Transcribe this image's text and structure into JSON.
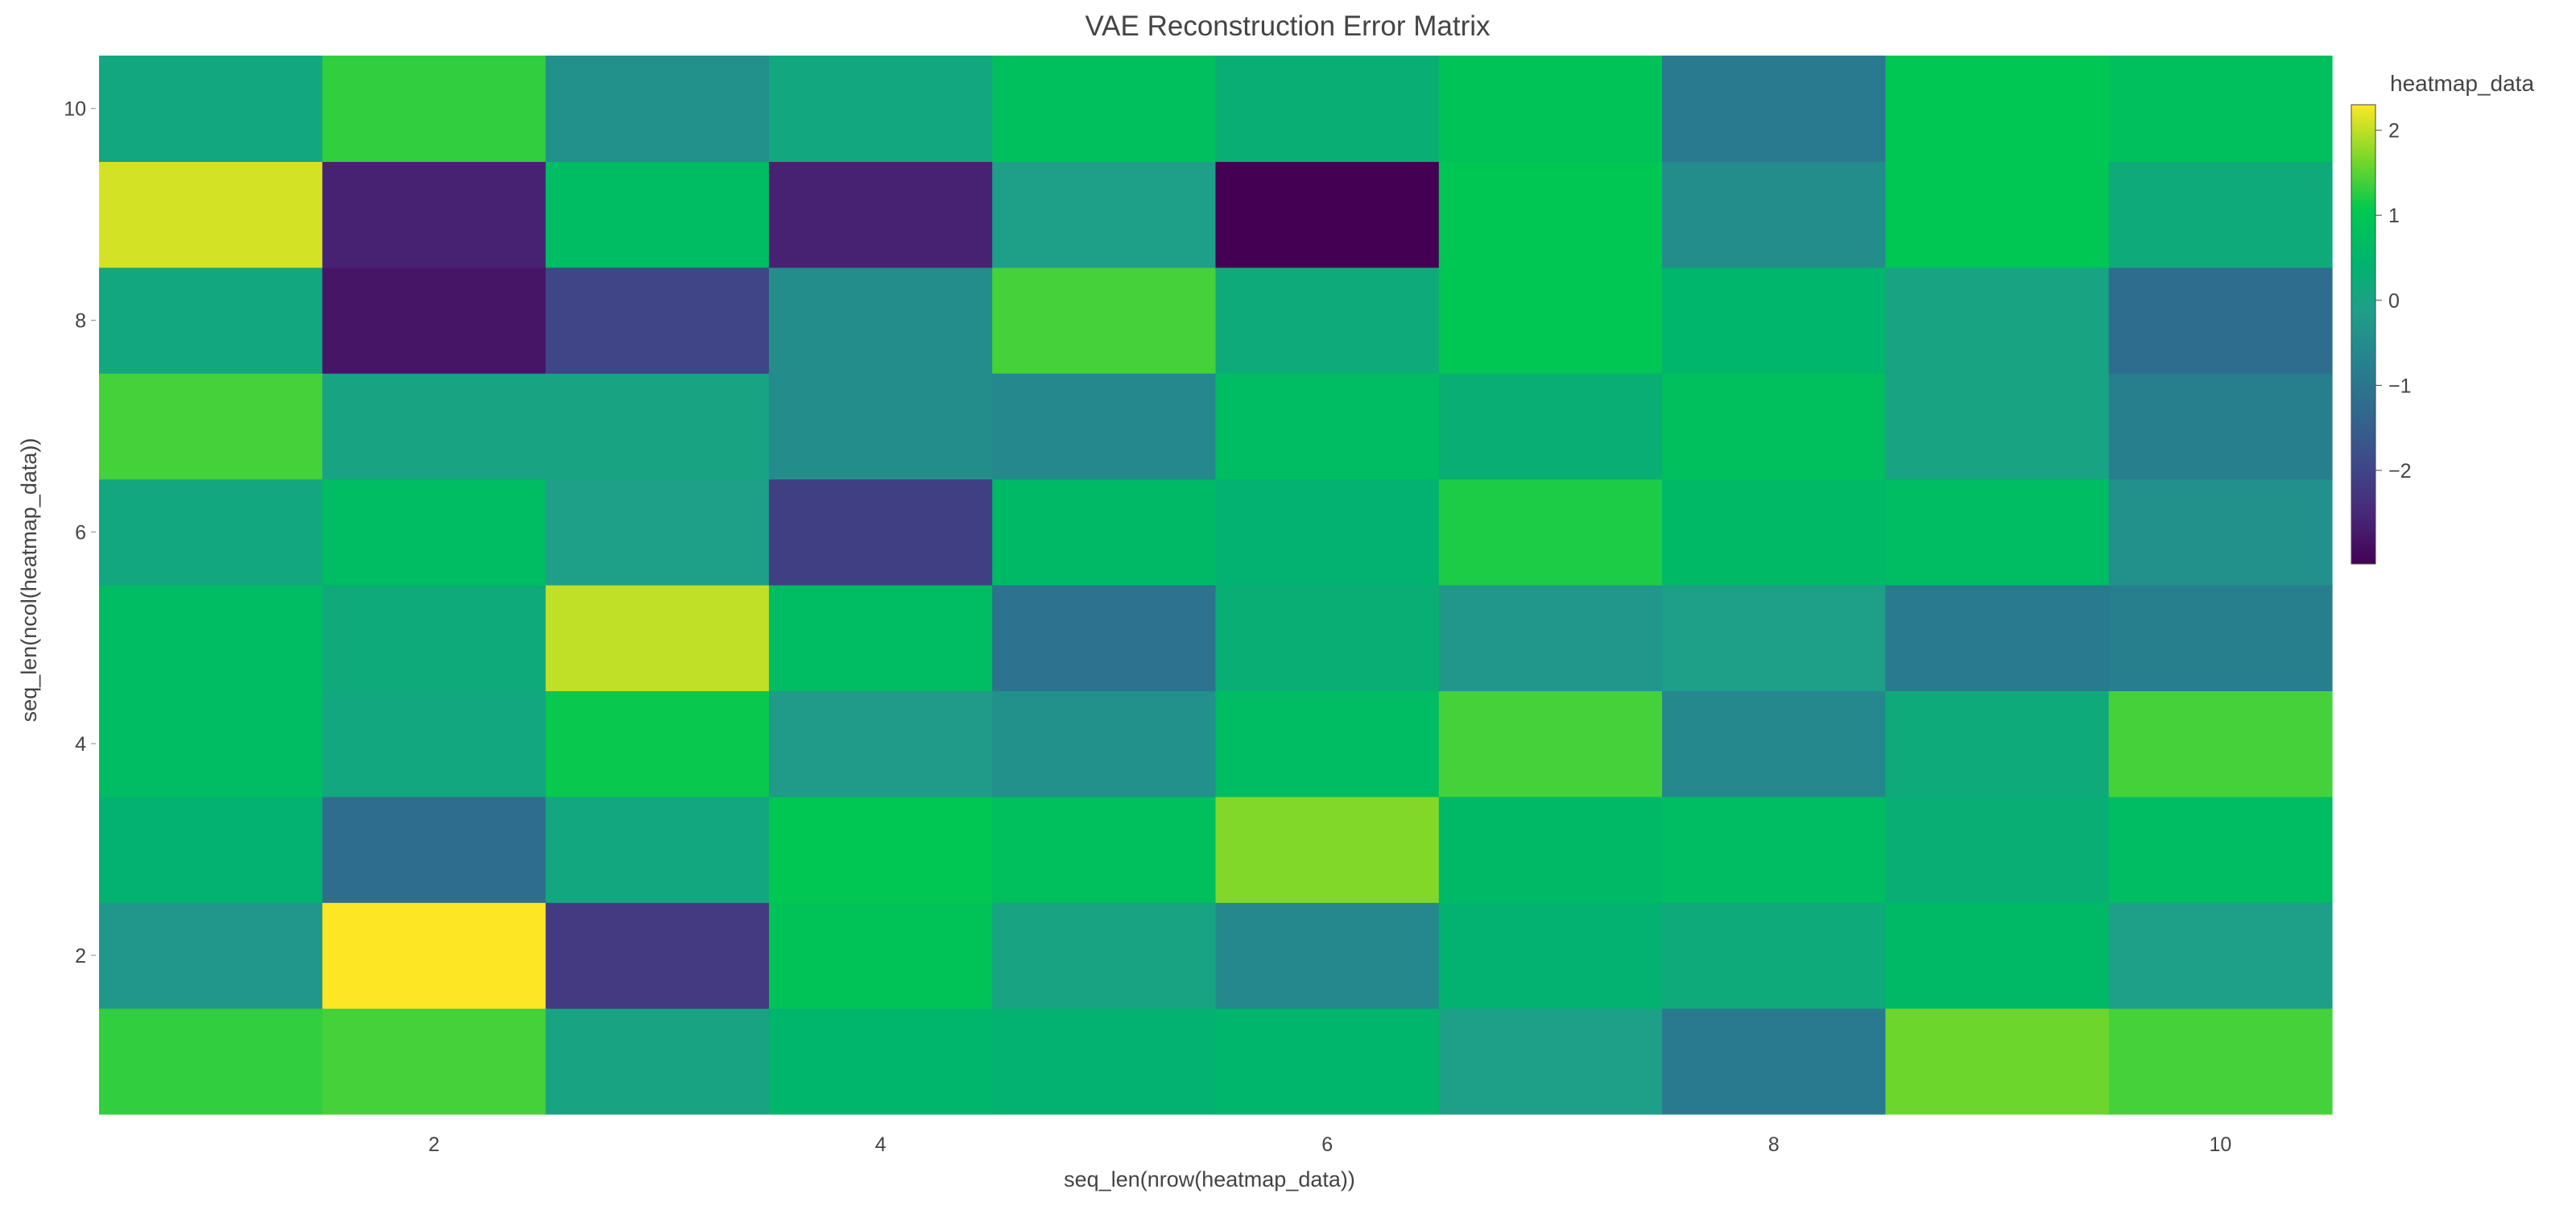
{
  "chart_data": {
    "type": "heatmap",
    "title": "VAE Reconstruction Error Matrix",
    "xlabel": "seq_len(nrow(heatmap_data))",
    "ylabel": "seq_len(ncol(heatmap_data))",
    "x": [
      1,
      2,
      3,
      4,
      5,
      6,
      7,
      8,
      9,
      10
    ],
    "y": [
      1,
      2,
      3,
      4,
      5,
      6,
      7,
      8,
      9,
      10
    ],
    "xlim": [
      0.5,
      10.5
    ],
    "ylim": [
      0.5,
      10.5
    ],
    "x_tick_values": [
      2,
      4,
      6,
      8,
      10
    ],
    "y_tick_values": [
      2,
      4,
      6,
      8,
      10
    ],
    "x_tick_labels": [
      "2",
      "4",
      "6",
      "8",
      "10"
    ],
    "y_tick_labels": [
      "2",
      "4",
      "6",
      "8",
      "10"
    ],
    "z": [
      [
        1.3,
        1.4,
        0.0,
        0.5,
        0.4,
        0.5,
        -0.1,
        -0.9,
        1.6,
        1.4
      ],
      [
        -0.3,
        2.3,
        -2.2,
        0.9,
        0.0,
        -0.6,
        0.4,
        0.2,
        0.6,
        -0.1
      ],
      [
        0.4,
        -1.2,
        0.1,
        1.0,
        0.8,
        1.7,
        0.6,
        0.7,
        0.3,
        0.7
      ],
      [
        0.7,
        0.1,
        1.1,
        -0.2,
        -0.4,
        0.7,
        1.4,
        -0.6,
        0.2,
        1.4
      ],
      [
        0.7,
        0.2,
        2.0,
        0.7,
        -1.1,
        0.3,
        -0.3,
        -0.1,
        -0.9,
        -0.8
      ],
      [
        0.1,
        0.7,
        -0.1,
        -2.1,
        0.6,
        0.4,
        1.2,
        0.6,
        0.7,
        -0.4
      ],
      [
        1.4,
        0.0,
        0.0,
        -0.5,
        -0.6,
        0.7,
        0.3,
        0.8,
        0.0,
        -0.8
      ],
      [
        0.1,
        -2.8,
        -2.0,
        -0.5,
        1.4,
        0.2,
        1.0,
        0.5,
        0.0,
        -1.2
      ],
      [
        2.1,
        -2.6,
        0.7,
        -2.6,
        -0.1,
        -3.1,
        1.0,
        -0.5,
        1.0,
        0.2
      ],
      [
        0.1,
        1.3,
        -0.4,
        0.1,
        0.8,
        0.3,
        0.9,
        -0.9,
        1.0,
        0.8
      ]
    ],
    "zlim": [
      -3.1,
      2.3
    ],
    "colorscale": "viridis",
    "colorbar": {
      "title": "heatmap_data",
      "tick_values": [
        2,
        1,
        0,
        -1,
        -2
      ],
      "tick_labels": [
        "2",
        "1",
        "0",
        "−1",
        "−2"
      ]
    },
    "legend_position": "right"
  }
}
